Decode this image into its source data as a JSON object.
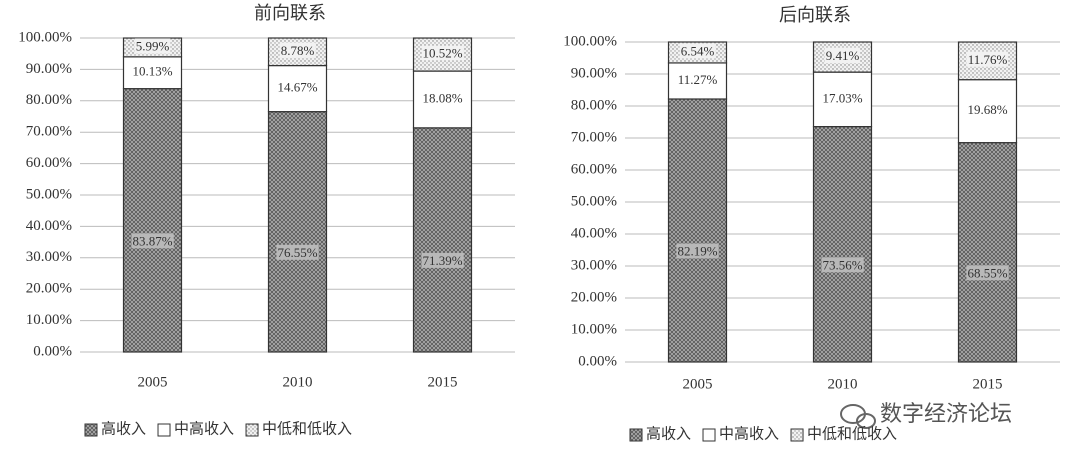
{
  "chart_data": [
    {
      "type": "stacked_bar",
      "title": "前向联系",
      "categories": [
        "2005",
        "2010",
        "2015"
      ],
      "series": [
        {
          "name": "高收入",
          "color": "#9a9a9a",
          "pattern": "crosshatch",
          "values": [
            83.87,
            76.55,
            71.39
          ],
          "value_labels": [
            "83.87%",
            "76.55%",
            "71.39%"
          ]
        },
        {
          "name": "中高收入",
          "color": "#ffffff",
          "pattern": "none",
          "values": [
            10.13,
            14.67,
            18.08
          ],
          "value_labels": [
            "10.13%",
            "14.67%",
            "18.08%"
          ]
        },
        {
          "name": "中低和低收入",
          "color": "#e6e6e6",
          "pattern": "dots",
          "values": [
            5.99,
            8.78,
            10.52
          ],
          "value_labels": [
            "5.99%",
            "8.78%",
            "10.52%"
          ]
        }
      ],
      "ylim": [
        0,
        100
      ],
      "yticks": [
        {
          "value": 0,
          "label": "0.00%"
        },
        {
          "value": 10,
          "label": "10.00%"
        },
        {
          "value": 20,
          "label": "20.00%"
        },
        {
          "value": 30,
          "label": "30.00%"
        },
        {
          "value": 40,
          "label": "40.00%"
        },
        {
          "value": 50,
          "label": "50.00%"
        },
        {
          "value": 60,
          "label": "60.00%"
        },
        {
          "value": 70,
          "label": "70.00%"
        },
        {
          "value": 80,
          "label": "80.00%"
        },
        {
          "value": 90,
          "label": "90.00%"
        },
        {
          "value": 100,
          "label": "100.00%"
        }
      ],
      "grid": true,
      "legend": "bottom"
    },
    {
      "type": "stacked_bar",
      "title": "后向联系",
      "categories": [
        "2005",
        "2010",
        "2015"
      ],
      "series": [
        {
          "name": "高收入",
          "color": "#9a9a9a",
          "pattern": "crosshatch",
          "values": [
            82.19,
            73.56,
            68.55
          ],
          "value_labels": [
            "82.19%",
            "73.56%",
            "68.55%"
          ]
        },
        {
          "name": "中高收入",
          "color": "#ffffff",
          "pattern": "none",
          "values": [
            11.27,
            17.03,
            19.68
          ],
          "value_labels": [
            "11.27%",
            "17.03%",
            "19.68%"
          ]
        },
        {
          "name": "中低和低收入",
          "color": "#e6e6e6",
          "pattern": "dots",
          "values": [
            6.54,
            9.41,
            11.76
          ],
          "value_labels": [
            "6.54%",
            "9.41%",
            "11.76%"
          ]
        }
      ],
      "ylim": [
        0,
        100
      ],
      "yticks": [
        {
          "value": 0,
          "label": "0.00%"
        },
        {
          "value": 10,
          "label": "10.00%"
        },
        {
          "value": 20,
          "label": "20.00%"
        },
        {
          "value": 30,
          "label": "30.00%"
        },
        {
          "value": 40,
          "label": "40.00%"
        },
        {
          "value": 50,
          "label": "50.00%"
        },
        {
          "value": 60,
          "label": "60.00%"
        },
        {
          "value": 70,
          "label": "70.00%"
        },
        {
          "value": 80,
          "label": "80.00%"
        },
        {
          "value": 90,
          "label": "90.00%"
        },
        {
          "value": 100,
          "label": "100.00%"
        }
      ],
      "grid": true,
      "legend": "bottom"
    }
  ],
  "watermark": "数字经济论坛"
}
